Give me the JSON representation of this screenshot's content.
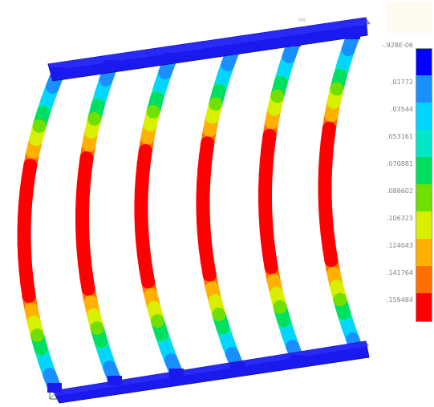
{
  "view_label": "MX",
  "legend": {
    "values": [
      "-.928E-06",
      ".01772",
      ".03544",
      ".053161",
      ".070881",
      ".088602",
      ".106323",
      ".124043",
      ".141764",
      ".159484"
    ],
    "colors": [
      "#0000ff",
      "#1a8fff",
      "#00d6ff",
      "#00e8c8",
      "#00e060",
      "#70e000",
      "#d8f000",
      "#ffb000",
      "#ff7000",
      "#ff0000"
    ]
  },
  "model": {
    "frame_color": "#1a1aee",
    "ribs": 6
  }
}
